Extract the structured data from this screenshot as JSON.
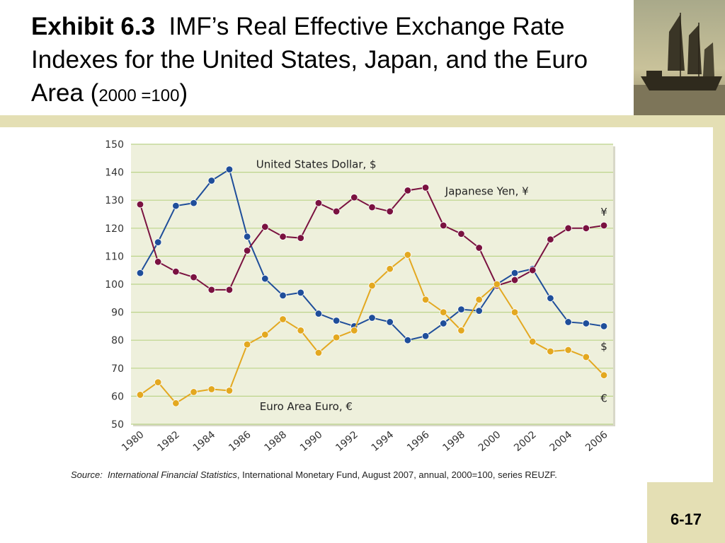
{
  "header": {
    "exhibit": "Exhibit 6.3",
    "title": "IMF’s Real Effective Exchange Rate Indexes for the United States, Japan, and the Euro Area (",
    "title_small": "2000 =100",
    "title_close": ")"
  },
  "footer": {
    "source_label": "Source:",
    "source_italic": "International Financial Statistics",
    "source_rest": ", International Monetary Fund, August 2007, annual, 2000=100, series REUZF.",
    "page_number": "6-17"
  },
  "colors": {
    "plot_bg": "#eef0dc",
    "grid": "#bcd48a",
    "usd": "#1f4e9a",
    "jpy": "#7a1240",
    "eur": "#e3a820",
    "tan": "#e4dfb4"
  },
  "icons": {
    "photo": "sailing-junk-photo"
  },
  "chart_data": {
    "type": "line",
    "title": "",
    "xlabel": "",
    "ylabel": "",
    "ylim": [
      50,
      150
    ],
    "yticks": [
      50,
      60,
      70,
      80,
      90,
      100,
      110,
      120,
      130,
      140,
      150
    ],
    "xticks": [
      "1980",
      "1982",
      "1984",
      "1986",
      "1988",
      "1990",
      "1992",
      "1994",
      "1996",
      "1998",
      "2000",
      "2002",
      "2004",
      "2006"
    ],
    "grid": true,
    "x": [
      1980,
      1981,
      1982,
      1983,
      1984,
      1985,
      1986,
      1987,
      1988,
      1989,
      1990,
      1991,
      1992,
      1993,
      1994,
      1995,
      1996,
      1997,
      1998,
      1999,
      2000,
      2001,
      2002,
      2003,
      2004,
      2005,
      2006
    ],
    "series": [
      {
        "name": "United States Dollar, $",
        "end_label": "$",
        "color": "#1f4e9a",
        "values": [
          104,
          115,
          128,
          129,
          137,
          141,
          117,
          102,
          96,
          97,
          89.5,
          87,
          85,
          88,
          86.5,
          80,
          81.5,
          86,
          91,
          90.5,
          100,
          104,
          105.5,
          95,
          86.5,
          86,
          85
        ]
      },
      {
        "name": "Japanese Yen, ¥",
        "end_label": "¥",
        "color": "#7a1240",
        "values": [
          128.5,
          108,
          104.5,
          102.5,
          98,
          98,
          112,
          120.5,
          117,
          116.5,
          129,
          126,
          131,
          127.5,
          126,
          133.5,
          134.5,
          121,
          118,
          113,
          99.5,
          101.5,
          105,
          116,
          120,
          120,
          121
        ]
      },
      {
        "name": "Euro Area Euro, €",
        "end_label": "€",
        "color": "#e3a820",
        "values": [
          60.5,
          65,
          57.5,
          61.5,
          62.5,
          62,
          78.5,
          82,
          87.5,
          83.5,
          75.5,
          81,
          83.5,
          99.5,
          105.5,
          110.5,
          94.5,
          90,
          83.5,
          94.5,
          100,
          90,
          79.5,
          76,
          76.5,
          74,
          67.5
        ]
      }
    ]
  }
}
